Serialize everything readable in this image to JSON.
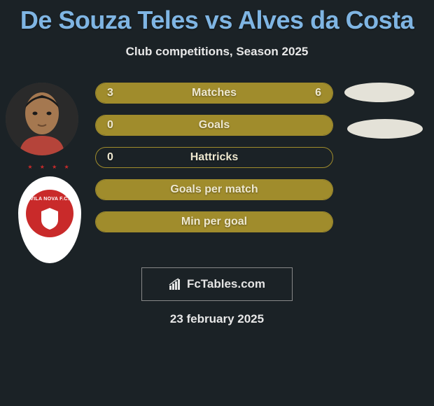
{
  "title": "De Souza Teles vs Alves da Costa",
  "subtitle": "Club competitions, Season 2025",
  "colors": {
    "background": "#1b2226",
    "title": "#7fb5e3",
    "text": "#e8e8e8",
    "bar_fill": "#a08c2c",
    "bar_border": "#a08c2c",
    "bar_text": "#eee8d0",
    "avatar_placeholder": "#e4e2d8",
    "club_red": "#c92a2a",
    "club_white": "#ffffff"
  },
  "stats": [
    {
      "label": "Matches",
      "left_val": "3",
      "right_val": "6",
      "left_pct": 33,
      "right_pct": 67
    },
    {
      "label": "Goals",
      "left_val": "0",
      "right_val": "",
      "left_pct": 0,
      "right_pct": 100
    },
    {
      "label": "Hattricks",
      "left_val": "0",
      "right_val": "",
      "left_pct": 0,
      "right_pct": 0
    },
    {
      "label": "Goals per match",
      "left_val": "",
      "right_val": "",
      "left_pct": 100,
      "right_pct": 0
    },
    {
      "label": "Min per goal",
      "left_val": "",
      "right_val": "",
      "left_pct": 100,
      "right_pct": 0
    }
  ],
  "club_label": "VILA NOVA F.C.",
  "footer_brand": "FcTables.com",
  "footer_date": "23 february 2025"
}
